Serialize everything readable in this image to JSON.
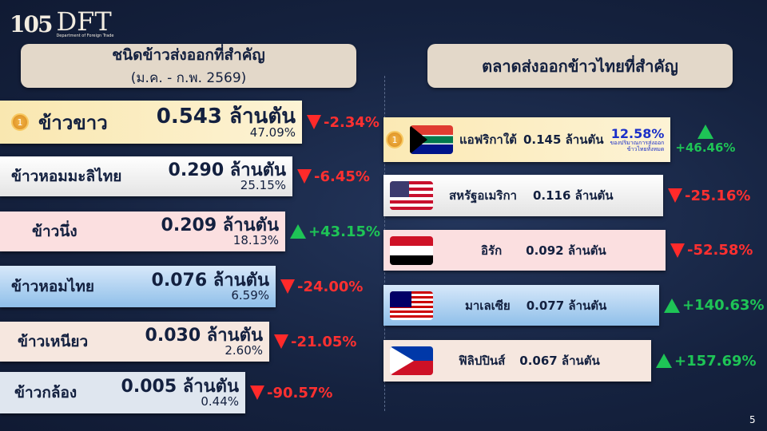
{
  "logo": {
    "number": "105",
    "brand": "DFT",
    "subtitle": "Department of Foreign Trade"
  },
  "left": {
    "title": "ชนิดข้าวส่งออกที่สำคัญ",
    "period": "(ม.ค. - ก.พ. 2569)",
    "items": [
      {
        "name": "ข้าวขาว",
        "volume": "0.543 ล้านตัน",
        "share": "47.09%",
        "change": "-2.34%",
        "direction": "down",
        "rank_medal": "1"
      },
      {
        "name": "ข้าวหอมมะลิไทย",
        "volume": "0.290 ล้านตัน",
        "share": "25.15%",
        "change": "-6.45%",
        "direction": "down"
      },
      {
        "name": "ข้าวนึ่ง",
        "volume": "0.209 ล้านตัน",
        "share": "18.13%",
        "change": "+43.15%",
        "direction": "up"
      },
      {
        "name": "ข้าวหอมไทย",
        "volume": "0.076 ล้านตัน",
        "share": "6.59%",
        "change": "-24.00%",
        "direction": "down"
      },
      {
        "name": "ข้าวเหนียว",
        "volume": "0.030 ล้านตัน",
        "share": "2.60%",
        "change": "-21.05%",
        "direction": "down"
      },
      {
        "name": "ข้าวกล้อง",
        "volume": "0.005 ล้านตัน",
        "share": "0.44%",
        "change": "-90.57%",
        "direction": "down"
      }
    ]
  },
  "right": {
    "title": "ตลาดส่งออกข้าวไทยที่สำคัญ",
    "top_share": "12.58%",
    "top_share_note1": "ของปริมาณการส่งออก",
    "top_share_note2": "ข้าวไทยทั้งหมด",
    "items": [
      {
        "country": "แอฟริกาใต้",
        "volume": "0.145 ล้านตัน",
        "change": "+46.46%",
        "direction": "up",
        "flag": "south-africa"
      },
      {
        "country": "สหรัฐอเมริกา",
        "volume": "0.116 ล้านตัน",
        "change": "-25.16%",
        "direction": "down",
        "flag": "usa"
      },
      {
        "country": "อิรัก",
        "volume": "0.092 ล้านตัน",
        "change": "-52.58%",
        "direction": "down",
        "flag": "iraq"
      },
      {
        "country": "มาเลเซีย",
        "volume": "0.077 ล้านตัน",
        "change": "+140.63%",
        "direction": "up",
        "flag": "malaysia"
      },
      {
        "country": "ฟิลิปปินส์",
        "volume": "0.067 ล้านตัน",
        "change": "+157.69%",
        "direction": "up",
        "flag": "philippines"
      }
    ]
  },
  "page_number": "5"
}
